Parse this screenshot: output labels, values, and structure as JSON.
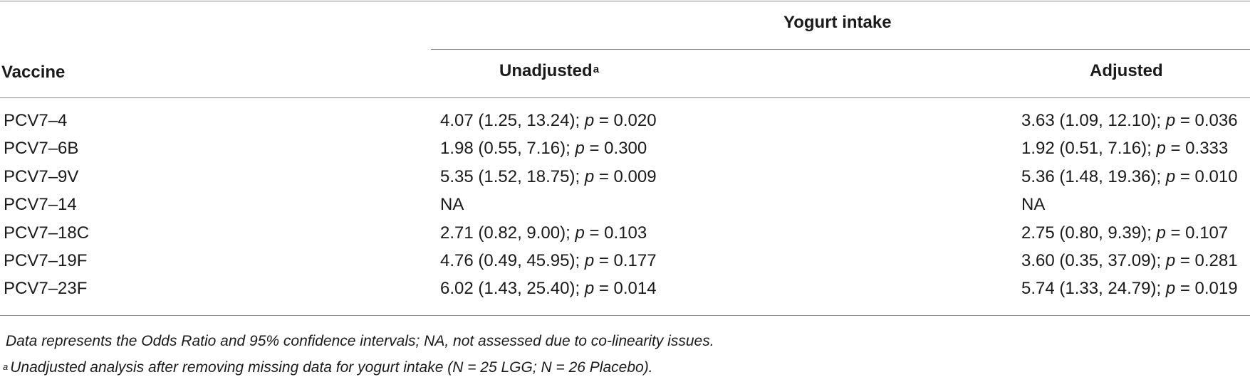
{
  "table": {
    "group_header": "Yogurt intake",
    "columns": {
      "vaccine": "Vaccine",
      "unadjusted": "Unadjusted",
      "unadjusted_sup": "a",
      "adjusted": "Adjusted"
    },
    "p_label": "p",
    "rows": [
      {
        "vaccine": "PCV7–4",
        "unadj_est": "4.07 (1.25, 13.24); ",
        "unadj_p": " = 0.020",
        "adj_est": "3.63 (1.09, 12.10); ",
        "adj_p": " = 0.036"
      },
      {
        "vaccine": "PCV7–6B",
        "unadj_est": "1.98 (0.55, 7.16); ",
        "unadj_p": " = 0.300",
        "adj_est": "1.92 (0.51, 7.16); ",
        "adj_p": " = 0.333"
      },
      {
        "vaccine": "PCV7–9V",
        "unadj_est": "5.35 (1.52, 18.75); ",
        "unadj_p": " = 0.009",
        "adj_est": "5.36 (1.48, 19.36); ",
        "adj_p": " = 0.010"
      },
      {
        "vaccine": "PCV7–14",
        "unadj_est": "NA",
        "unadj_p": null,
        "adj_est": "NA",
        "adj_p": null
      },
      {
        "vaccine": "PCV7–18C",
        "unadj_est": "2.71 (0.82, 9.00); ",
        "unadj_p": " = 0.103",
        "adj_est": "2.75 (0.80, 9.39); ",
        "adj_p": " = 0.107"
      },
      {
        "vaccine": "PCV7–19F",
        "unadj_est": "4.76 (0.49, 45.95); ",
        "unadj_p": " = 0.177",
        "adj_est": "3.60 (0.35, 37.09); ",
        "adj_p": " = 0.281"
      },
      {
        "vaccine": "PCV7–23F",
        "unadj_est": "6.02 (1.43, 25.40); ",
        "unadj_p": " = 0.014",
        "adj_est": "5.74 (1.33, 24.79); ",
        "adj_p": " = 0.019"
      }
    ]
  },
  "footnotes": {
    "note1": "Data represents the Odds Ratio and 95% confidence intervals; NA, not assessed due to co-linearity issues.",
    "note2_marker": "a",
    "note2": "Unadjusted analysis after removing missing data for yogurt intake (N = 25 LGG; N = 26 Placebo)."
  }
}
